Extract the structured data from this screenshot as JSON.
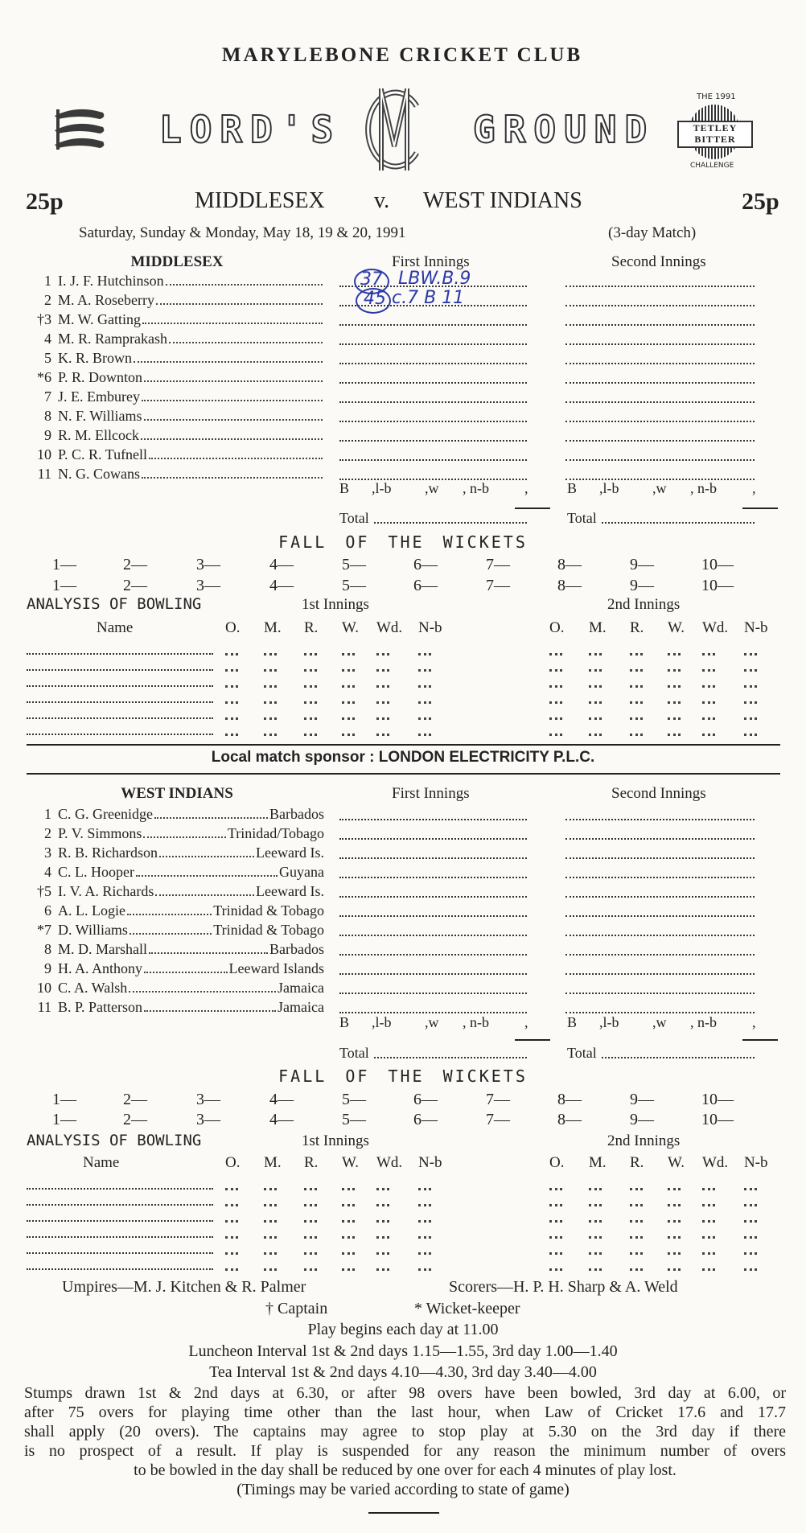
{
  "header": {
    "club": "MARYLEBONE CRICKET CLUB",
    "ground_left": "LORD'S",
    "ground_right": "GROUND",
    "price_left": "25p",
    "price_right": "25p",
    "team1": "MIDDLESEX",
    "versus": "v.",
    "team2": "WEST INDIANS",
    "dates": "Saturday, Sunday & Monday, May 18, 19 & 20, 1991",
    "match_type": "(3-day Match)"
  },
  "logos": {
    "middlesex": "three-seaxes-crest-icon",
    "mcc_monogram": "MCC",
    "tetley": {
      "top": "THE 1991",
      "line1": "TETLEY",
      "line2": "BITTER",
      "bottom": "CHALLENGE"
    }
  },
  "innings_labels": {
    "first": "First Innings",
    "second": "Second Innings"
  },
  "extras": {
    "b": "B",
    "lb": ",l-b",
    "w": ",w",
    "nb": ", n-b",
    "end": ","
  },
  "total_label": "Total",
  "fall_of_wickets": {
    "title": "FALL OF THE WICKETS",
    "labels": [
      "1—",
      "2—",
      "3—",
      "4—",
      "5—",
      "6—",
      "7—",
      "8—",
      "9—",
      "10—"
    ]
  },
  "bowling": {
    "title": "ANALYSIS OF BOWLING",
    "first": "1st Innings",
    "second": "2nd Innings",
    "name_label": "Name",
    "columns": [
      "O.",
      "M.",
      "R.",
      "W.",
      "Wd.",
      "N-b"
    ]
  },
  "teams": [
    {
      "name": "MIDDLESEX",
      "players": [
        {
          "no": "1",
          "name": "I. J. F. Hutchinson",
          "from": ""
        },
        {
          "no": "2",
          "name": "M. A. Roseberry",
          "from": ""
        },
        {
          "no": "†3",
          "name": "M. W. Gatting",
          "from": ""
        },
        {
          "no": "4",
          "name": "M. R. Ramprakash",
          "from": ""
        },
        {
          "no": "5",
          "name": "K. R. Brown",
          "from": ""
        },
        {
          "no": "*6",
          "name": "P. R. Downton",
          "from": ""
        },
        {
          "no": "7",
          "name": "J. E. Emburey",
          "from": ""
        },
        {
          "no": "8",
          "name": "N. F. Williams",
          "from": ""
        },
        {
          "no": "9",
          "name": "R. M. Ellcock",
          "from": ""
        },
        {
          "no": "10",
          "name": "P. C. R. Tufnell",
          "from": ""
        },
        {
          "no": "11",
          "name": "N. G. Cowans",
          "from": ""
        }
      ],
      "handwritten": [
        {
          "runs": "37",
          "dismissal": "LBW.B.9"
        },
        {
          "runs": "45",
          "dismissal": "c.7 B 11"
        }
      ]
    },
    {
      "name": "WEST INDIANS",
      "players": [
        {
          "no": "1",
          "name": "C. G. Greenidge",
          "from": "Barbados"
        },
        {
          "no": "2",
          "name": "P. V. Simmons",
          "from": "Trinidad/Tobago"
        },
        {
          "no": "3",
          "name": "R. B. Richardson",
          "from": "Leeward Is."
        },
        {
          "no": "4",
          "name": "C. L. Hooper",
          "from": "Guyana"
        },
        {
          "no": "†5",
          "name": "I. V. A. Richards",
          "from": "Leeward Is."
        },
        {
          "no": "6",
          "name": "A. L. Logie",
          "from": "Trinidad & Tobago"
        },
        {
          "no": "*7",
          "name": "D. Williams",
          "from": "Trinidad & Tobago"
        },
        {
          "no": "8",
          "name": "M. D. Marshall",
          "from": "Barbados"
        },
        {
          "no": "9",
          "name": "H. A. Anthony",
          "from": "Leeward Islands"
        },
        {
          "no": "10",
          "name": "C. A. Walsh",
          "from": "Jamaica"
        },
        {
          "no": "11",
          "name": "B. P. Patterson",
          "from": "Jamaica"
        }
      ],
      "handwritten": []
    }
  ],
  "sponsor": {
    "label": "Local match sponsor :",
    "name": "LONDON ELECTRICITY P.L.C."
  },
  "footer": {
    "umpires": "Umpires—M. J. Kitchen & R. Palmer",
    "scorers": "Scorers—H. P. H. Sharp & A. Weld",
    "captain": "† Captain",
    "keeper": "* Wicket-keeper",
    "play_begins": "Play begins each day at 11.00",
    "luncheon": "Luncheon Interval 1st & 2nd days 1.15—1.55, 3rd day 1.00—1.40",
    "tea": "Tea Interval 1st & 2nd days 4.10—4.30, 3rd day 3.40—4.00",
    "stumps_lines": [
      "Stumps drawn 1st & 2nd days at 6.30, or after 98 overs have been bowled, 3rd day at 6.00, or",
      "after 75 overs for playing time other than the last hour, when Law of Cricket 17.6 and 17.7",
      "shall apply (20 overs).  The captains may agree to stop play at 5.30 on the 3rd day if there",
      "is no prospect of a result.  If play is suspended for any reason the minimum number of overs",
      "to be bowled in the day shall be reduced by one over for each 4 minutes of play lost."
    ],
    "timings": "(Timings may be varied according to state of game)"
  }
}
